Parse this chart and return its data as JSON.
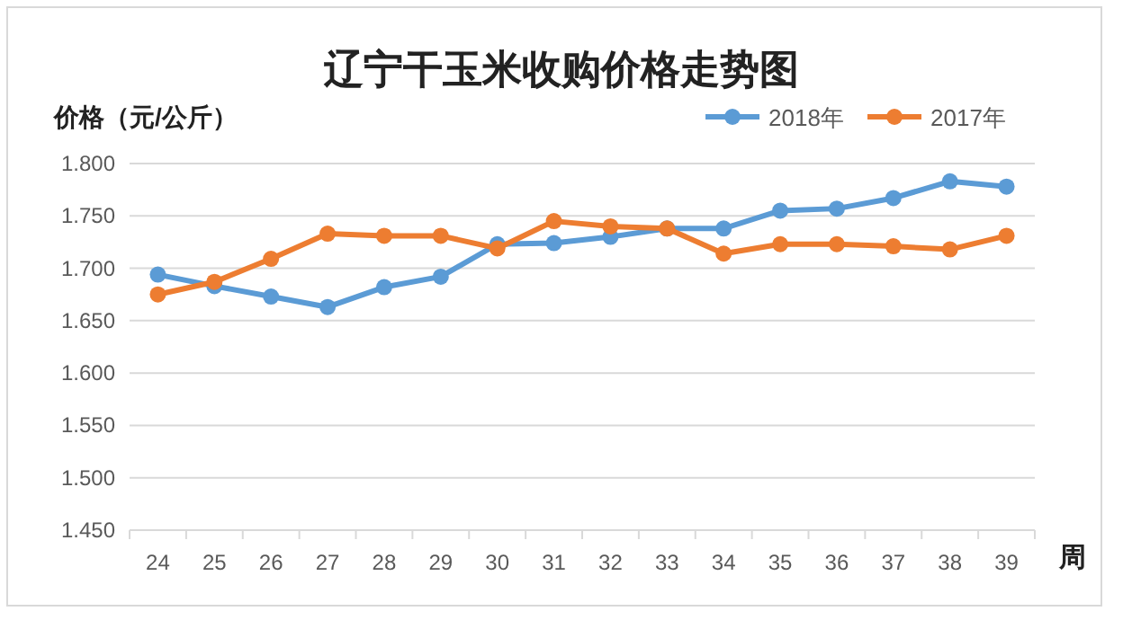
{
  "chart_data": {
    "type": "line",
    "title": "辽宁干玉米收购价格走势图",
    "ylabel": "价格（元/公斤）",
    "xlabel": "周",
    "categories": [
      "24",
      "25",
      "26",
      "27",
      "28",
      "29",
      "30",
      "31",
      "32",
      "33",
      "34",
      "35",
      "36",
      "37",
      "38",
      "39"
    ],
    "series": [
      {
        "name": "2018年",
        "color": "#5b9bd5",
        "values": [
          1.694,
          1.683,
          1.673,
          1.663,
          1.682,
          1.692,
          1.723,
          1.724,
          1.73,
          1.738,
          1.738,
          1.755,
          1.757,
          1.767,
          1.783,
          1.778
        ]
      },
      {
        "name": "2017年",
        "color": "#ed7d31",
        "values": [
          1.675,
          1.687,
          1.709,
          1.733,
          1.731,
          1.731,
          1.719,
          1.745,
          1.74,
          1.738,
          1.714,
          1.723,
          1.723,
          1.721,
          1.718,
          1.731
        ]
      }
    ],
    "ylim": [
      1.45,
      1.8
    ],
    "yticks": [
      {
        "value": 1.45,
        "label": "1.450"
      },
      {
        "value": 1.5,
        "label": "1.500"
      },
      {
        "value": 1.55,
        "label": "1.550"
      },
      {
        "value": 1.6,
        "label": "1.600"
      },
      {
        "value": 1.65,
        "label": "1.650"
      },
      {
        "value": 1.7,
        "label": "1.700"
      },
      {
        "value": 1.75,
        "label": "1.750"
      },
      {
        "value": 1.8,
        "label": "1.800"
      }
    ],
    "grid": "y",
    "legend": "top right",
    "marker": "circle",
    "line_style": "solid"
  }
}
